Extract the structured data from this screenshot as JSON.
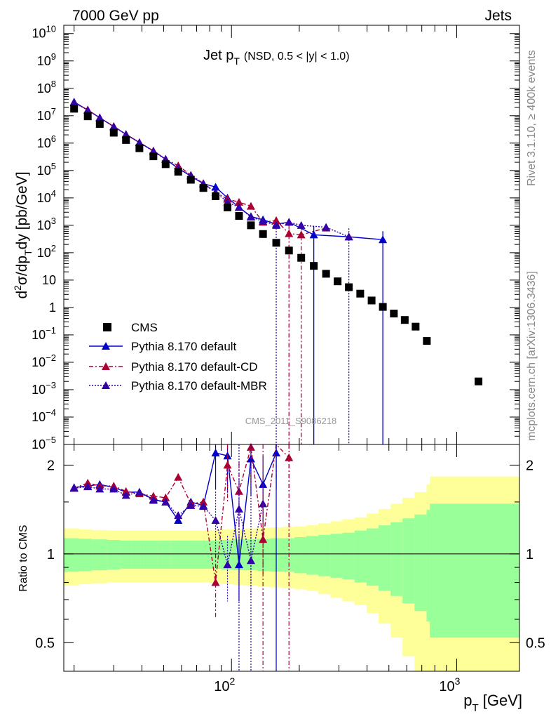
{
  "header": {
    "left_label": "7000 GeV pp",
    "right_label": "Jets",
    "side_top": "Rivet 3.1.10, ≥ 400k events",
    "side_bottom": "mcplots.cern.ch [arXiv:1306.3436]",
    "watermark": "CMS_2011_S9086218"
  },
  "colors": {
    "cms": "#000000",
    "default": "#0000cc",
    "default_cd": "#aa0033",
    "default_mbr": "#3300aa",
    "band_outer": "#ffff99",
    "band_inner": "#99ff99"
  },
  "chart_data": [
    {
      "type": "scatter",
      "title_main": "Jet p",
      "title_sub": "T",
      "title_cond": "(NSD, 0.5 < |y| < 1.0)",
      "ylabel_parts": [
        "d",
        "2",
        "σ/dp",
        "T",
        "dy [pb/GeV]"
      ],
      "xlabel_parts": [
        "p",
        "T",
        " [GeV]"
      ],
      "xscale": "log",
      "yscale": "log",
      "xlim": [
        18,
        1900
      ],
      "ylim": [
        1e-05,
        20000000000.0
      ],
      "y_ticks": [
        {
          "v": 10000000000.0,
          "b": "10",
          "e": "10"
        },
        {
          "v": 1000000000.0,
          "b": "10",
          "e": "9"
        },
        {
          "v": 100000000.0,
          "b": "10",
          "e": "8"
        },
        {
          "v": 10000000.0,
          "b": "10",
          "e": "7"
        },
        {
          "v": 1000000.0,
          "b": "10",
          "e": "6"
        },
        {
          "v": 100000.0,
          "b": "10",
          "e": "5"
        },
        {
          "v": 10000.0,
          "b": "10",
          "e": "4"
        },
        {
          "v": 1000.0,
          "b": "10",
          "e": "3"
        },
        {
          "v": 100.0,
          "b": "10",
          "e": "2"
        },
        {
          "v": 10,
          "b": "10",
          "e": ""
        },
        {
          "v": 1,
          "b": "1",
          "e": ""
        },
        {
          "v": 0.1,
          "b": "10",
          "e": "−1"
        },
        {
          "v": 0.01,
          "b": "10",
          "e": "−2"
        },
        {
          "v": 0.001,
          "b": "10",
          "e": "−3"
        },
        {
          "v": 0.0001,
          "b": "10",
          "e": "−4"
        },
        {
          "v": 1e-05,
          "b": "10",
          "e": "−5"
        }
      ],
      "legend_placement": "center-left",
      "series": [
        {
          "name": "CMS",
          "key": "cms",
          "marker": "square",
          "x": [
            20,
            23,
            26,
            30,
            34,
            39,
            45,
            51,
            58,
            66,
            75,
            85,
            96,
            108,
            122,
            138,
            158,
            180,
            204,
            232,
            263,
            296,
            332,
            373,
            419,
            470,
            526,
            588,
            657,
            737,
            1250
          ],
          "y": [
            18000000.0,
            9500000.0,
            5000000.0,
            2400000.0,
            1300000.0,
            650000.0,
            330000.0,
            170000.0,
            90000.0,
            46000.0,
            23000.0,
            11500.0,
            4500.0,
            2200.0,
            1000.0,
            480.0,
            230.0,
            120.0,
            65,
            33,
            17,
            9,
            5.5,
            3.2,
            1.8,
            1.05,
            0.6,
            0.35,
            0.2,
            0.06,
            0.002
          ]
        },
        {
          "name": "Pythia 8.170 default",
          "key": "default",
          "marker": "triangle",
          "dash": "",
          "x": [
            20,
            23,
            26,
            30,
            34,
            39,
            45,
            51,
            58,
            66,
            75,
            85,
            96,
            108,
            122,
            138,
            158,
            180,
            232,
            332,
            470
          ],
          "y": [
            32000000.0,
            16000000.0,
            8500000.0,
            4000000.0,
            2100000.0,
            1050000.0,
            520000.0,
            260000.0,
            120000.0,
            62000.0,
            33000.0,
            25000.0,
            10000.0,
            4600.0,
            2100.0,
            1600.0,
            1100.0,
            1300.0,
            450,
            380,
            300
          ]
        },
        {
          "name": "Pythia 8.170 default-CD",
          "key": "default_cd",
          "marker": "triangle",
          "dash": "6,3,2,3",
          "x": [
            20,
            23,
            26,
            30,
            34,
            39,
            45,
            51,
            58,
            66,
            75,
            85,
            96,
            108,
            122,
            138,
            158,
            180,
            204,
            263
          ],
          "y": [
            30000000.0,
            16500000.0,
            8400000.0,
            4100000.0,
            2100000.0,
            1050000.0,
            520000.0,
            260000.0,
            150000.0,
            68000.0,
            34000.0,
            16000.0,
            9000.0,
            7000.0,
            5000.0,
            1300.0,
            1500.0,
            500,
            450,
            800
          ]
        },
        {
          "name": "Pythia 8.170 default-MBR",
          "key": "default_mbr",
          "marker": "triangle",
          "dash": "2,2",
          "x": [
            20,
            23,
            26,
            30,
            34,
            39,
            45,
            51,
            58,
            66,
            75,
            85,
            96,
            108,
            122,
            138,
            158,
            180,
            204,
            263,
            332
          ],
          "y": [
            30000000.0,
            16000000.0,
            8300000.0,
            4000000.0,
            2050000.0,
            1050000.0,
            500000.0,
            255000.0,
            120000.0,
            66000.0,
            33000.0,
            16000.0,
            7000.0,
            4500.0,
            2000.0,
            1400.0,
            1000.0,
            1300.0,
            1000.0,
            850,
            380
          ]
        }
      ]
    },
    {
      "type": "line",
      "ylabel": "Ratio to CMS",
      "xscale": "log",
      "yscale": "log",
      "xlim": [
        18,
        1900
      ],
      "ylim": [
        0.4,
        2.35
      ],
      "y_ticks": [
        {
          "v": 0.5,
          "t": "0.5"
        },
        {
          "v": 1,
          "t": "1"
        },
        {
          "v": 2,
          "t": "2"
        }
      ],
      "x_ticks": [
        {
          "v": 100,
          "b": "10",
          "e": "2"
        },
        {
          "v": 1000,
          "b": "10",
          "e": "3"
        }
      ],
      "band_edges": [
        18,
        21,
        24,
        28,
        32,
        36,
        41,
        47,
        54,
        62,
        70,
        80,
        90,
        102,
        115,
        130,
        148,
        168,
        190,
        215,
        243,
        275,
        311,
        352,
        398,
        450,
        509,
        575,
        650,
        735,
        760,
        1900
      ],
      "band_outer": [
        0.22,
        0.21,
        0.205,
        0.2,
        0.2,
        0.2,
        0.2,
        0.2,
        0.2,
        0.2,
        0.2,
        0.205,
        0.21,
        0.215,
        0.22,
        0.225,
        0.23,
        0.235,
        0.24,
        0.25,
        0.27,
        0.29,
        0.31,
        0.33,
        0.37,
        0.42,
        0.48,
        0.55,
        0.62,
        0.72,
        0.83
      ],
      "band_inner": [
        0.13,
        0.125,
        0.12,
        0.115,
        0.11,
        0.11,
        0.11,
        0.11,
        0.11,
        0.11,
        0.11,
        0.11,
        0.115,
        0.12,
        0.12,
        0.125,
        0.13,
        0.13,
        0.14,
        0.15,
        0.16,
        0.17,
        0.18,
        0.2,
        0.22,
        0.25,
        0.28,
        0.32,
        0.36,
        0.41,
        0.48
      ],
      "series": [
        {
          "name": "Pythia 8.170 default",
          "key": "default",
          "x": [
            20,
            23,
            26,
            30,
            34,
            39,
            45,
            51,
            58,
            66,
            75,
            85,
            96,
            108,
            122,
            138,
            158
          ],
          "y": [
            1.68,
            1.7,
            1.72,
            1.68,
            1.62,
            1.62,
            1.53,
            1.5,
            1.3,
            1.5,
            1.46,
            2.2,
            2.15,
            0.92,
            2.1,
            1.72,
            2.2
          ]
        },
        {
          "name": "Pythia 8.170 default-CD",
          "key": "default_cd",
          "x": [
            20,
            23,
            26,
            30,
            34,
            39,
            45,
            51,
            58,
            66,
            75,
            85,
            96,
            108,
            122,
            138,
            158,
            180
          ],
          "y": [
            1.67,
            1.74,
            1.7,
            1.7,
            1.63,
            1.6,
            1.57,
            1.55,
            1.82,
            1.48,
            1.5,
            0.8,
            2.0,
            1.63,
            2.3,
            1.12,
            2.4,
            2.12
          ]
        },
        {
          "name": "Pythia 8.170 default-MBR",
          "key": "default_mbr",
          "x": [
            20,
            23,
            26,
            30,
            34,
            39,
            45,
            51,
            58,
            66,
            75,
            85,
            96,
            108,
            122,
            138
          ],
          "y": [
            1.67,
            1.69,
            1.66,
            1.66,
            1.58,
            1.62,
            1.52,
            1.5,
            1.35,
            1.46,
            1.45,
            1.3,
            0.92,
            1.42,
            0.95,
            1.48
          ]
        }
      ]
    }
  ]
}
